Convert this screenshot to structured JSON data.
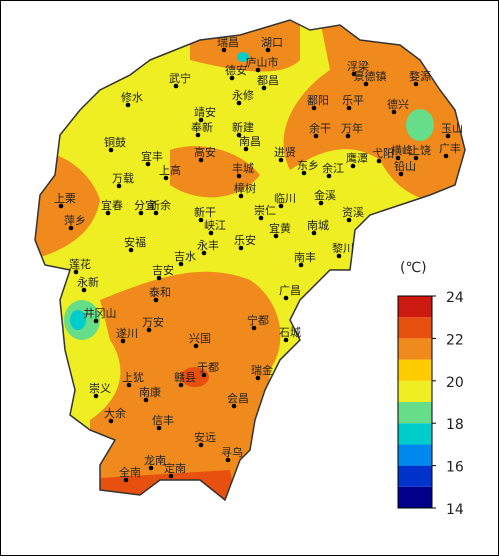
{
  "legend": {
    "unit": "(℃)",
    "ticks": [
      14,
      16,
      18,
      20,
      22,
      24
    ],
    "colors": [
      "#00008b",
      "#0033cc",
      "#0088ee",
      "#00cccc",
      "#66dd88",
      "#eeee22",
      "#ffcc00",
      "#f08a1c",
      "#e85010",
      "#cc1a10"
    ]
  },
  "stations": [
    "瑞昌",
    "湖口",
    "庐山市",
    "德安",
    "都昌",
    "武宁",
    "修水",
    "永修",
    "浮梁",
    "景德镇",
    "婺源",
    "鄱阳",
    "乐平",
    "德兴",
    "玉山",
    "靖安",
    "奉新",
    "新建",
    "南昌",
    "余干",
    "万年",
    "铜鼓",
    "宜丰",
    "高安",
    "进贤",
    "上高",
    "丰城",
    "东乡",
    "余江",
    "鹰潭",
    "弋阳",
    "横峰",
    "上饶",
    "广丰",
    "铅山",
    "万载",
    "樟树",
    "临川",
    "金溪",
    "资溪",
    "上栗",
    "宜春",
    "分宜",
    "新余",
    "新干",
    "崇仁",
    "萍乡",
    "峡江",
    "乐安",
    "宜黄",
    "南城",
    "黎川",
    "安福",
    "吉水",
    "永丰",
    "南丰",
    "莲花",
    "吉安",
    "永新",
    "泰和",
    "广昌",
    "井冈山",
    "万安",
    "宁都",
    "遂川",
    "兴国",
    "石城",
    "于都",
    "赣县",
    "瑞金",
    "上犹",
    "南康",
    "崇义",
    "会昌",
    "大余",
    "信丰",
    "安远",
    "寻乌",
    "龙南",
    "全南",
    "定南"
  ]
}
